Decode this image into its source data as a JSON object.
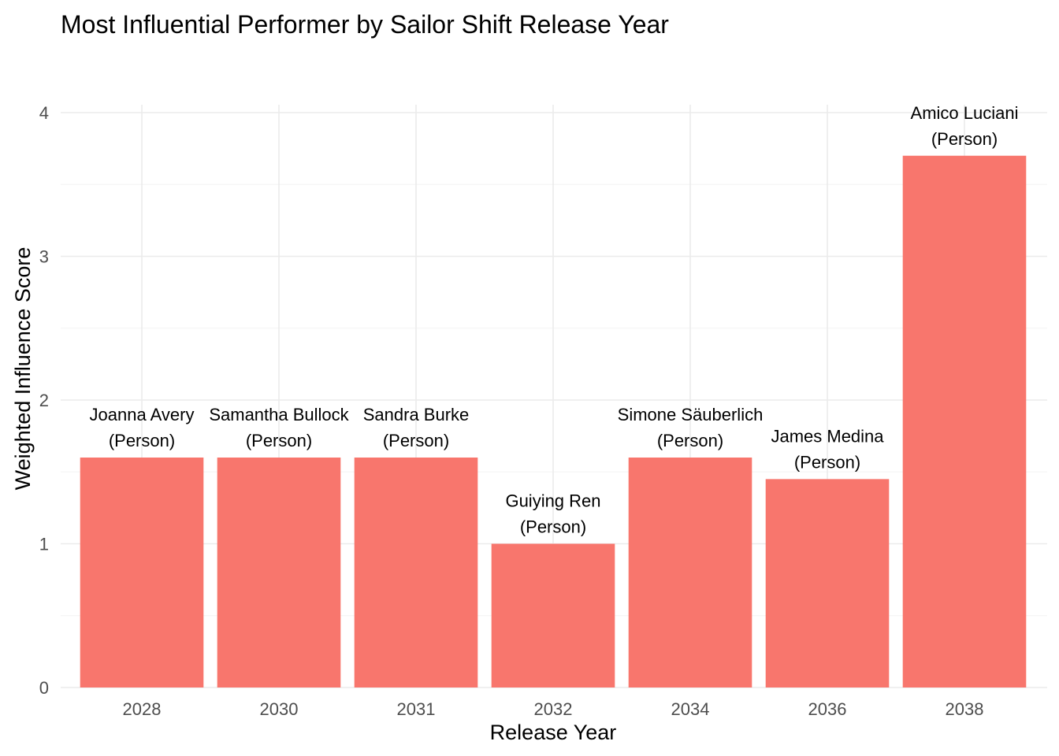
{
  "chart_data": {
    "type": "bar",
    "title": "Most Influential Performer by Sailor Shift Release Year",
    "xlabel": "Release Year",
    "ylabel": "Weighted Influence Score",
    "categories": [
      "2028",
      "2030",
      "2031",
      "2032",
      "2034",
      "2036",
      "2038"
    ],
    "values": [
      1.6,
      1.6,
      1.6,
      1.0,
      1.6,
      1.45,
      3.7
    ],
    "labels": [
      [
        "Joanna Avery",
        "(Person)"
      ],
      [
        "Samantha Bullock",
        "(Person)"
      ],
      [
        "Sandra Burke",
        "(Person)"
      ],
      [
        "Guiying Ren",
        "(Person)"
      ],
      [
        "Simone Säuberlich",
        "(Person)"
      ],
      [
        "James Medina",
        "(Person)"
      ],
      [
        "Amico Luciani",
        "(Person)"
      ]
    ],
    "ylim": [
      0,
      4
    ],
    "yticks": [
      0,
      1,
      2,
      3,
      4
    ],
    "grid": true,
    "legend": false,
    "bar_color": "#F8766D"
  }
}
